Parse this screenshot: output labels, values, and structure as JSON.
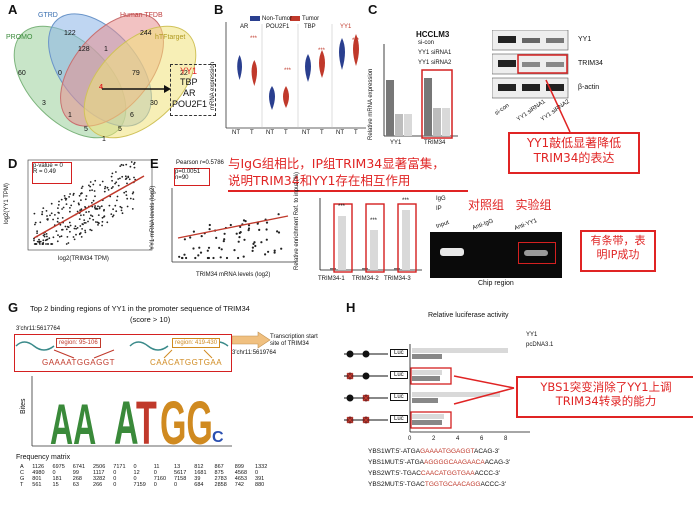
{
  "panelA": {
    "label": "A",
    "sets": [
      "GTRD",
      "Human TFDB",
      "PROMO",
      "hTFtarget"
    ],
    "counts": [
      "122",
      "244",
      "60",
      "22",
      "128",
      "1",
      "79",
      "0",
      "3",
      "1",
      "30",
      "6",
      "5",
      "5",
      "1"
    ],
    "highlight_number": "4",
    "genes": [
      "YY1",
      "TBP",
      "AR",
      "POU2F1"
    ]
  },
  "panelB": {
    "label": "B",
    "groups": [
      "AR",
      "POU2F1",
      "TBP",
      "YY1"
    ],
    "legend": [
      "Non-Tumor",
      "Tumor"
    ],
    "xticks": [
      "NT",
      "T",
      "NT",
      "T",
      "NT",
      "T",
      "NT",
      "T"
    ],
    "ylabel": "mRNA expression",
    "yticks": [
      "6",
      "4",
      "2",
      "0",
      "-2",
      "-4"
    ],
    "sig": [
      "***",
      "***",
      "***",
      "***"
    ]
  },
  "panelC": {
    "label": "C",
    "title": "HCCLM3",
    "legend": [
      "si-con",
      "YY1 siRNA1",
      "YY1 siRNA2"
    ],
    "ylabel": "Relative mRNA expression",
    "yticks": [
      "1.5",
      "1.0",
      "0.5",
      "0.0"
    ],
    "xticks": [
      "YY1",
      "TRIM34"
    ],
    "blot_labels": [
      "YY1",
      "TRIM34",
      "β-actin"
    ],
    "lane_labels": [
      "si-con",
      "YY1 siRNA1",
      "YY1 siRNA2"
    ],
    "callout": "YY1敲低显著降低TRIM34的表达"
  },
  "panelD": {
    "label": "D",
    "stats": [
      "p-value = 0",
      "R = 0.49"
    ],
    "ylabel": "log2(YY1 TPM)",
    "xlabel": "log2(TRIM34 TPM)",
    "xticks": [
      "0",
      "1",
      "2",
      "3",
      "4",
      "5",
      "6"
    ],
    "yticks": [
      "6",
      "5",
      "4",
      "3",
      "2",
      "1",
      "0"
    ]
  },
  "panelE": {
    "label": "E",
    "stats": [
      "Pearson r=0.5786",
      "p=0.0051",
      "n=90"
    ],
    "ylabel": "YY1 mRNA levels (log2)",
    "xlabel": "TRIM34 mRNA levels (log2)",
    "xticks": [
      "-4",
      "-2",
      "0",
      "2",
      "4"
    ],
    "yticks": [
      "4",
      "2",
      "0",
      "-2",
      "-4"
    ]
  },
  "panelF": {
    "label": "F",
    "callout_line1": "与IgG组相比，IP组TRIM34显著富集，",
    "callout_line2": "说明TRIM34和YY1存在相互作用",
    "legend": [
      "IgG",
      "IP"
    ],
    "ylabel": "Relative enrichment Ref. to input (%)",
    "yticks": [
      "0.15",
      "0.10",
      "0.05",
      "0.00"
    ],
    "xticks": [
      "TRIM34-1",
      "TRIM34-2",
      "TRIM34-3"
    ],
    "sig": [
      "***",
      "***",
      "***"
    ],
    "group_labels": "对照组   实验组",
    "gel_labels": [
      "Input",
      "Anti-IgG",
      "Anti-YY1"
    ],
    "gel_caption": "Chip region",
    "callout2": "有条带，表明IP成功"
  },
  "panelG": {
    "label": "G",
    "title_line1": "Top 2 binding regions of YY1 in the promoter sequence of TRIM34",
    "title_line2": "(score > 10)",
    "start_coord": "3'chr11:5617764",
    "end_coord": "3'chr11:5619764",
    "region1": "region:  95-106",
    "region2": "region:  419-430",
    "seq1": "GAAAATGGAGGT",
    "seq2": "CAACATGGTGAA",
    "tss": "Transcription start site of TRIM34",
    "logo_ylabel": "Bites",
    "logo_yticks": [
      "2",
      "1",
      "0"
    ],
    "matrix_title": "Frequency matrix",
    "matrix": [
      [
        "A",
        "1126",
        "6975",
        "6741",
        "2506",
        "7171",
        "0",
        "11",
        "13",
        "812",
        "867",
        "899",
        "1332"
      ],
      [
        "C",
        "4980",
        "0",
        "99",
        "1117",
        "0",
        "12",
        "0",
        "5617",
        "1681",
        "875",
        "4568",
        "0"
      ],
      [
        "G",
        "801",
        "181",
        "268",
        "3282",
        "0",
        "0",
        "7160",
        "7158",
        "39",
        "2783",
        "4653",
        "391"
      ],
      [
        "T",
        "561",
        "15",
        "63",
        "266",
        "0",
        "7159",
        "0",
        "0",
        "684",
        "2858",
        "742",
        "880"
      ]
    ]
  },
  "panelH": {
    "label": "H",
    "title": "Relative luciferase activity",
    "legend": [
      "YY1",
      "pcDNA3.1"
    ],
    "luc": "Luc",
    "xticks": [
      "0",
      "2",
      "4",
      "6",
      "8"
    ],
    "callout": "YBS1突变消除了YY1上调TRIM34转录的能力",
    "sequences": [
      {
        "pre": "YBS1WT:5'-ATGA",
        "red": "GAAAATGGAGGT",
        "post": "ACAG-3'"
      },
      {
        "pre": "YBS1MUT:5'-ATGA",
        "red": "AGGGGCAAGAACA",
        "post": "ACAG-3'"
      },
      {
        "pre": "YBS2WT:5'-TGAC",
        "red": "CAACATGGTGAA",
        "post": "ACCC-3'"
      },
      {
        "pre": "YBS2MUT:5'-TGAC",
        "red": "TGGTGCAACAGG",
        "post": "ACCC-3'"
      }
    ]
  }
}
